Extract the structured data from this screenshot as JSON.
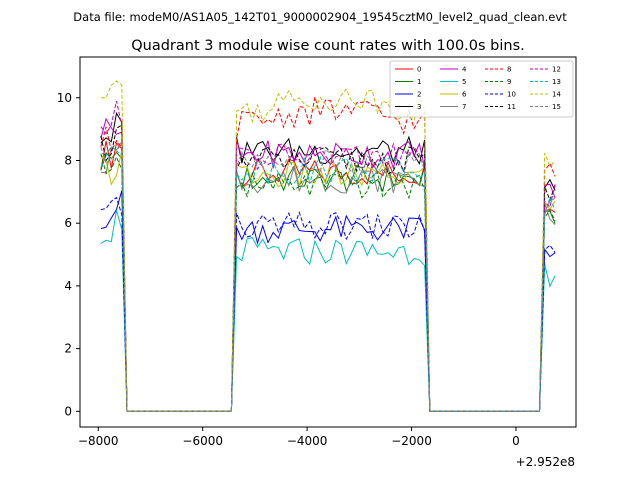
{
  "figure": {
    "suptitle": "Data file: modeM0/AS1A05_142T01_9000002904_19545cztM0_level2_quad_clean.evt"
  },
  "chart_data": {
    "type": "line",
    "title": "Quadrant 3 module wise count rates with 100.0s bins.",
    "xlabel": "",
    "ylabel": "",
    "x_offset_label": "+2.952e8",
    "xlim": [
      -8350,
      1150
    ],
    "ylim": [
      -0.5,
      11.3
    ],
    "xticks": [
      -8000,
      -6000,
      -4000,
      -2000,
      0
    ],
    "xtick_labels": [
      "−8000",
      "−6000",
      "−4000",
      "−2000",
      "0"
    ],
    "yticks": [
      0,
      2,
      4,
      6,
      8,
      10
    ],
    "ytick_labels": [
      "0",
      "2",
      "4",
      "6",
      "8",
      "10"
    ],
    "grid": false,
    "legend_location": "top-right",
    "x_range": [
      -7950,
      750
    ],
    "x_step": 100,
    "segments": [
      [
        -7950,
        -7550
      ],
      [
        -5350,
        -1750
      ],
      [
        550,
        750
      ]
    ],
    "zero_segments": [
      [
        -7450,
        -5450
      ],
      [
        -1650,
        450
      ]
    ],
    "series": [
      {
        "name": "0",
        "color": "#ff0000",
        "dash": "solid",
        "level": 7.6,
        "start": 8.2
      },
      {
        "name": "1",
        "color": "#008000",
        "dash": "solid",
        "level": 7.4,
        "start": 8.0
      },
      {
        "name": "2",
        "color": "#0000ff",
        "dash": "solid",
        "level": 5.8,
        "start": 6.3
      },
      {
        "name": "3",
        "color": "#000000",
        "dash": "solid",
        "level": 8.3,
        "start": 8.8
      },
      {
        "name": "4",
        "color": "#bf00bf",
        "dash": "solid",
        "level": 8.2,
        "start": 9.0
      },
      {
        "name": "5",
        "color": "#00bfbf",
        "dash": "solid",
        "level": 5.1,
        "start": 5.8
      },
      {
        "name": "6",
        "color": "#bfbf00",
        "dash": "solid",
        "level": 7.5,
        "start": 7.7
      },
      {
        "name": "7",
        "color": "#808080",
        "dash": "solid",
        "level": 7.4,
        "start": 8.0
      },
      {
        "name": "8",
        "color": "#ff0000",
        "dash": "dashed",
        "level": 8.9,
        "start": 8.6
      },
      {
        "name": "9",
        "color": "#008000",
        "dash": "dashed",
        "level": 7.2,
        "start": 7.8
      },
      {
        "name": "10",
        "color": "#0000ff",
        "dash": "dashed",
        "level": 5.9,
        "start": 6.2
      },
      {
        "name": "11",
        "color": "#000000",
        "dash": "dashed",
        "level": 8.0,
        "start": 8.5
      },
      {
        "name": "12",
        "color": "#bf00bf",
        "dash": "dashed",
        "level": 8.1,
        "start": 9.1
      },
      {
        "name": "13",
        "color": "#00bfbf",
        "dash": "dashed",
        "level": 7.7,
        "start": 8.0
      },
      {
        "name": "14",
        "color": "#bfbf00",
        "dash": "dashed",
        "level": 9.3,
        "start": 10.0
      },
      {
        "name": "15",
        "color": "#808080",
        "dash": "dashed",
        "level": 7.9,
        "start": 8.3
      }
    ]
  }
}
